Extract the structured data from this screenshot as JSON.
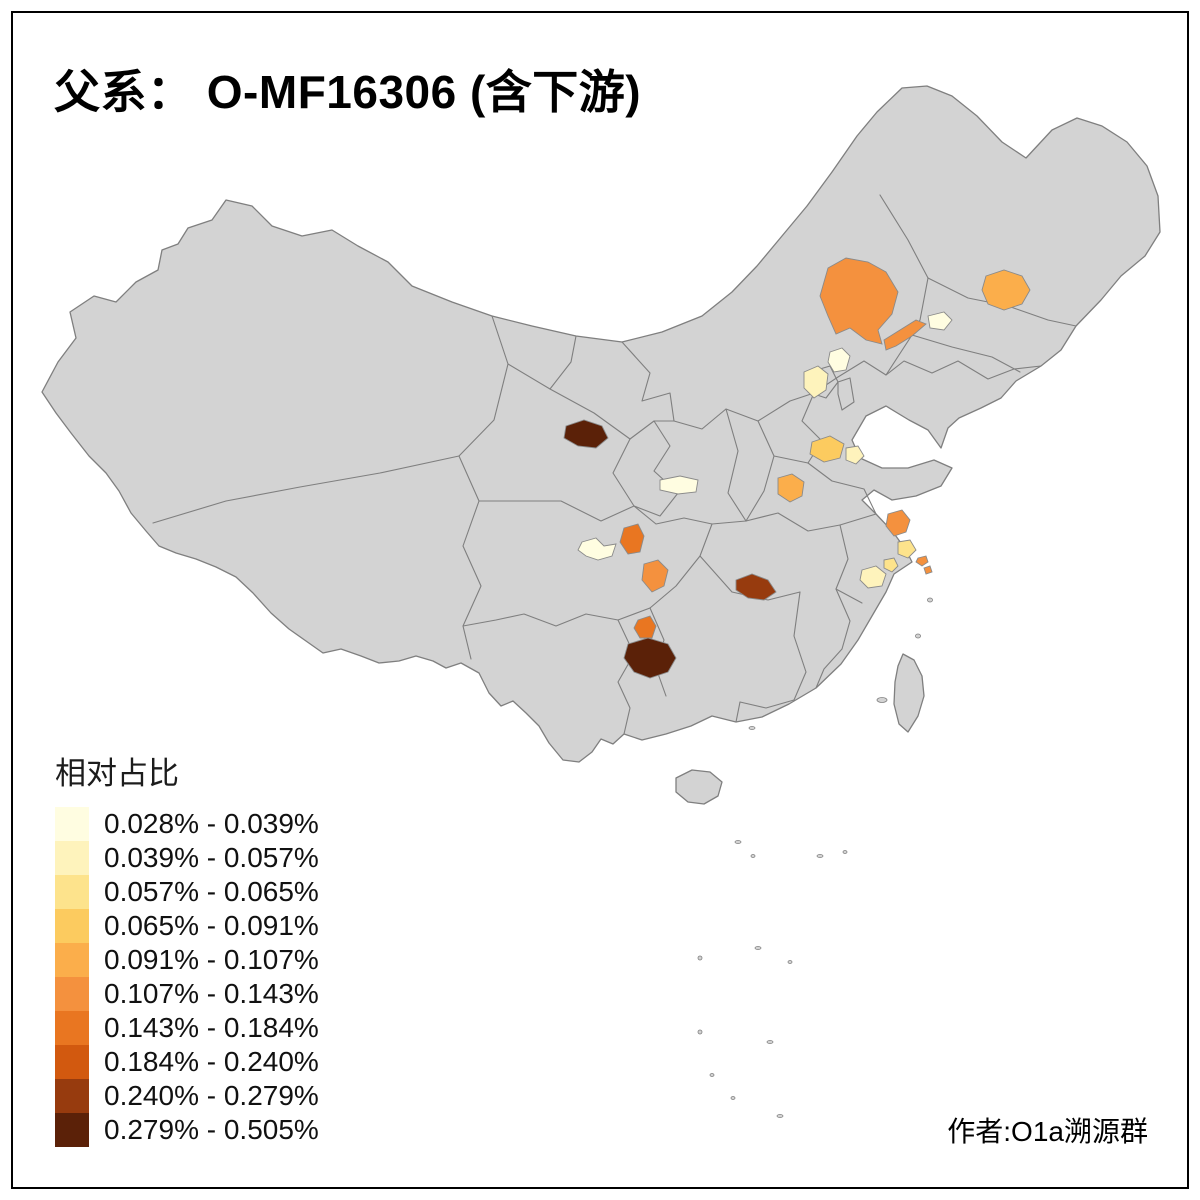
{
  "title": "父系： O-MF16306 (含下游)",
  "attribution": "作者:O1a溯源群",
  "legend": {
    "title": "相对占比",
    "classes": [
      {
        "label": "0.028% - 0.039%",
        "color": "#FFFDE1"
      },
      {
        "label": "0.039% - 0.057%",
        "color": "#FEF3BC"
      },
      {
        "label": "0.057% - 0.065%",
        "color": "#FDE38C"
      },
      {
        "label": "0.065% - 0.091%",
        "color": "#FCCB5F"
      },
      {
        "label": "0.091% - 0.107%",
        "color": "#FBAE4B"
      },
      {
        "label": "0.107% - 0.143%",
        "color": "#F4913E"
      },
      {
        "label": "0.143% - 0.184%",
        "color": "#E97621"
      },
      {
        "label": "0.184% - 0.240%",
        "color": "#D2590F"
      },
      {
        "label": "0.240% - 0.279%",
        "color": "#973B0E"
      },
      {
        "label": "0.279% - 0.505%",
        "color": "#5B2108"
      }
    ]
  },
  "map": {
    "base_fill": "#D3D3D3",
    "border_color": "#7F7F7F",
    "background": "#FFFFFF",
    "frame_color": "#000000",
    "highlighted_regions": [
      {
        "id": "r01",
        "class_index": 5
      },
      {
        "id": "r02",
        "class_index": 4
      },
      {
        "id": "r03",
        "class_index": 5
      },
      {
        "id": "r04",
        "class_index": 0
      },
      {
        "id": "r05",
        "class_index": 1
      },
      {
        "id": "r06",
        "class_index": 0
      },
      {
        "id": "r07",
        "class_index": 3
      },
      {
        "id": "r08",
        "class_index": 1
      },
      {
        "id": "r09",
        "class_index": 4
      },
      {
        "id": "r10",
        "class_index": 0
      },
      {
        "id": "r11",
        "class_index": 9
      },
      {
        "id": "r12",
        "class_index": 6
      },
      {
        "id": "r13",
        "class_index": 0
      },
      {
        "id": "r14",
        "class_index": 5
      },
      {
        "id": "r15",
        "class_index": 8
      },
      {
        "id": "r16",
        "class_index": 5
      },
      {
        "id": "r17",
        "class_index": 2
      },
      {
        "id": "r18",
        "class_index": 1
      },
      {
        "id": "r19",
        "class_index": 2
      },
      {
        "id": "r20",
        "class_index": 5
      },
      {
        "id": "r21",
        "class_index": 5
      },
      {
        "id": "r22",
        "class_index": 6
      },
      {
        "id": "r23",
        "class_index": 9
      }
    ]
  }
}
